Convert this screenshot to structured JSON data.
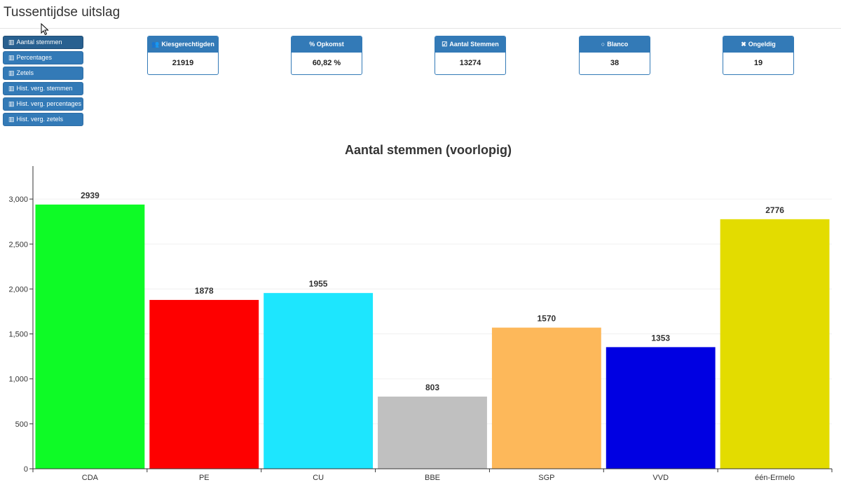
{
  "page": {
    "title": "Tussentijdse uitslag"
  },
  "nav": [
    {
      "label": "Aantal stemmen",
      "icon": "bar-chart-icon",
      "active": true
    },
    {
      "label": "Percentages",
      "icon": "bar-chart-icon",
      "active": false
    },
    {
      "label": "Zetels",
      "icon": "bar-chart-icon",
      "active": false
    },
    {
      "label": "Hist. verg. stemmen",
      "icon": "bar-chart-icon",
      "active": false
    },
    {
      "label": "Hist. verg. percentages",
      "icon": "bar-chart-icon",
      "active": false
    },
    {
      "label": "Hist. verg. zetels",
      "icon": "bar-chart-icon",
      "active": false
    }
  ],
  "stats": [
    {
      "label": "Kiesgerechtigden",
      "value": "21919",
      "icon": "users-icon",
      "glyph": "👥"
    },
    {
      "label": "% Opkomst",
      "value": "60,82 %",
      "icon": "percent-icon",
      "glyph": ""
    },
    {
      "label": "Aantal Stemmen",
      "value": "13274",
      "icon": "checkbox-icon",
      "glyph": "☑"
    },
    {
      "label": "Blanco",
      "value": "38",
      "icon": "circle-icon",
      "glyph": "○"
    },
    {
      "label": "Ongeldig",
      "value": "19",
      "icon": "close-icon",
      "glyph": "✖"
    }
  ],
  "colors": {
    "primary": "#337ab7",
    "primary_active": "#286090"
  },
  "chart_data": {
    "type": "bar",
    "title": "Aantal stemmen (voorlopig)",
    "xlabel": "",
    "ylabel": "",
    "categories": [
      "CDA",
      "PE",
      "CU",
      "BBE",
      "SGP",
      "VVD",
      "één-Ermelo"
    ],
    "values": [
      2939,
      1878,
      1955,
      803,
      1570,
      1353,
      2776
    ],
    "colors": [
      "#0efb26",
      "#fe0000",
      "#1de6fe",
      "#c0c0c0",
      "#fdb85a",
      "#0000e2",
      "#e3dc00"
    ],
    "ylim": [
      0,
      3400
    ],
    "yticks": [
      0,
      500,
      1000,
      1500,
      2000,
      2500,
      3000
    ],
    "ytick_labels": [
      "0",
      "500",
      "1,000",
      "1,500",
      "2,000",
      "2,500",
      "3,000"
    ],
    "grid": true
  }
}
